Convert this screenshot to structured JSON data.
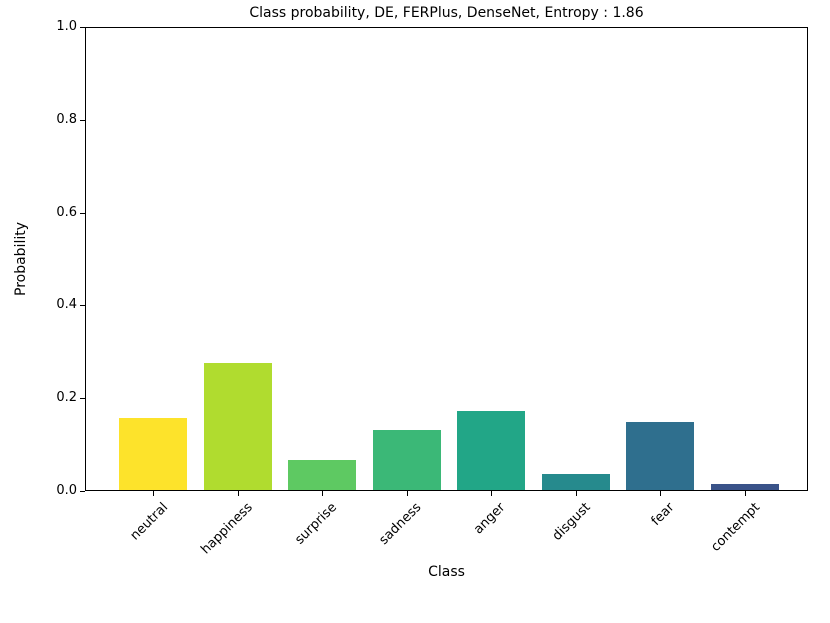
{
  "chart_data": {
    "type": "bar",
    "title": "Class probability, DE, FERPlus, DenseNet, Entropy : 1.86",
    "xlabel": "Class",
    "ylabel": "Probability",
    "categories": [
      "neutral",
      "happiness",
      "surprise",
      "sadness",
      "anger",
      "disgust",
      "fear",
      "contempt"
    ],
    "values": [
      0.155,
      0.273,
      0.065,
      0.13,
      0.171,
      0.035,
      0.147,
      0.014
    ],
    "bar_colors": [
      "#fde32b",
      "#b0dc2f",
      "#5ec962",
      "#3bb877",
      "#22a687",
      "#268a8d",
      "#2f6f8e",
      "#3a5389"
    ],
    "ylim": [
      0.0,
      1.0
    ],
    "yticks": [
      0.0,
      0.2,
      0.4,
      0.6,
      0.8,
      1.0
    ],
    "ytick_labels": [
      "0.0",
      "0.2",
      "0.4",
      "0.6",
      "0.8",
      "1.0"
    ],
    "x_tick_rotation_deg": 45,
    "bar_relative_width": 0.8,
    "grid": false,
    "legend": "none",
    "entropy": "1.86",
    "colors": {
      "background": "#ffffff",
      "axis": "#000000",
      "text": "#000000"
    }
  }
}
